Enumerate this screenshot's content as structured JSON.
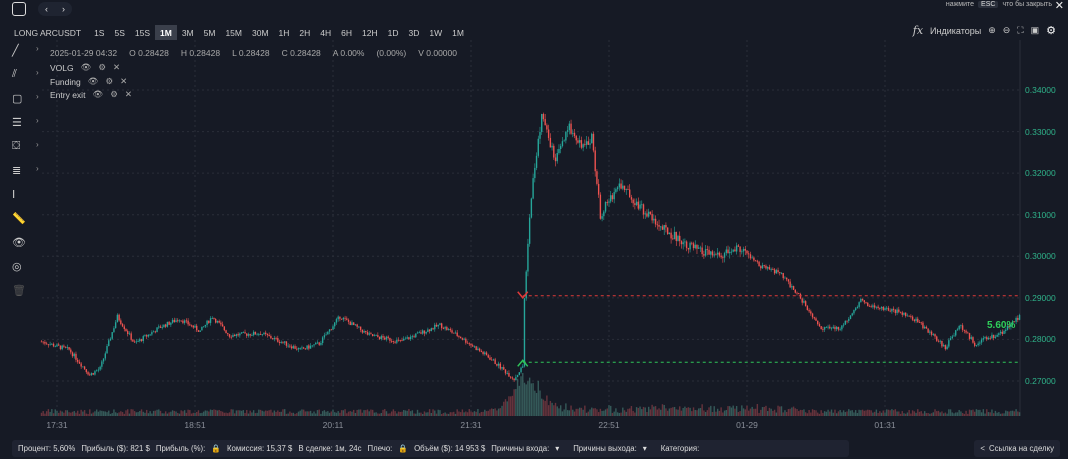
{
  "header": {
    "esc_hint_prefix": "нажмите",
    "esc_key": "ESC",
    "esc_hint_suffix": "что бы закрыть"
  },
  "toolbar": {
    "symbol": "LONG ARCUSDT",
    "timeframes": [
      "1S",
      "5S",
      "15S",
      "1M",
      "3M",
      "5M",
      "15M",
      "30M",
      "1H",
      "2H",
      "4H",
      "6H",
      "12H",
      "1D",
      "3D",
      "1W",
      "1M"
    ],
    "active_timeframe_index": 3,
    "indicators_label": "Индикаторы"
  },
  "ohlc": {
    "date": "2025-01-29 04:32",
    "open": "O 0.28428",
    "high": "H 0.28428",
    "low": "L 0.28428",
    "close": "C 0.28428",
    "change": "A 0.00%",
    "change_pct": "(0.00%)",
    "volume": "V 0.00000"
  },
  "indicators": [
    "VOLG",
    "Funding",
    "Entry exit"
  ],
  "chart_data": {
    "type": "candlestick",
    "x_ticks": [
      "17:31",
      "18:51",
      "20:11",
      "21:31",
      "22:51",
      "01-29",
      "01:31"
    ],
    "y_ticks": [
      "0.34000",
      "0.33000",
      "0.32000",
      "0.31000",
      "0.30000",
      "0.29000",
      "0.28000",
      "0.27000"
    ],
    "ylim": [
      0.27,
      0.34
    ],
    "price_path": [
      [
        "17:22",
        0.2795
      ],
      [
        "17:38",
        0.2775
      ],
      [
        "17:50",
        0.2715
      ],
      [
        "17:56",
        0.273
      ],
      [
        "18:06",
        0.2855
      ],
      [
        "18:16",
        0.279
      ],
      [
        "18:31",
        0.283
      ],
      [
        "18:42",
        0.285
      ],
      [
        "18:54",
        0.282
      ],
      [
        "19:01",
        0.2855
      ],
      [
        "19:11",
        0.281
      ],
      [
        "19:29",
        0.2815
      ],
      [
        "19:52",
        0.2775
      ],
      [
        "20:03",
        0.279
      ],
      [
        "20:15",
        0.2855
      ],
      [
        "20:32",
        0.281
      ],
      [
        "20:50",
        0.2795
      ],
      [
        "21:13",
        0.2835
      ],
      [
        "21:25",
        0.2805
      ],
      [
        "21:42",
        0.2755
      ],
      [
        "21:56",
        0.2705
      ],
      [
        "22:01",
        0.2735
      ],
      [
        "22:02",
        0.29
      ],
      [
        "22:06",
        0.315
      ],
      [
        "22:12",
        0.334
      ],
      [
        "22:20",
        0.323
      ],
      [
        "22:28",
        0.331
      ],
      [
        "22:37",
        0.326
      ],
      [
        "22:41",
        0.329
      ],
      [
        "22:46",
        0.31
      ],
      [
        "22:57",
        0.3175
      ],
      [
        "23:09",
        0.312
      ],
      [
        "23:21",
        0.307
      ],
      [
        "23:32",
        0.304
      ],
      [
        "23:44",
        0.301
      ],
      [
        "23:55",
        0.3
      ],
      [
        "00:07",
        0.302
      ],
      [
        "00:19",
        0.2975
      ],
      [
        "00:30",
        0.296
      ],
      [
        "00:42",
        0.29
      ],
      [
        "00:53",
        0.283
      ],
      [
        "01:05",
        0.2825
      ],
      [
        "01:17",
        0.2895
      ],
      [
        "01:22",
        0.288
      ],
      [
        "01:40",
        0.2865
      ],
      [
        "01:51",
        0.284
      ],
      [
        "02:06",
        0.278
      ],
      [
        "02:14",
        0.2835
      ],
      [
        "02:23",
        0.279
      ],
      [
        "02:38",
        0.2815
      ],
      [
        "02:49",
        0.2855
      ]
    ],
    "entry_price": 0.2745,
    "exit_price": 0.2905,
    "result_label": "5.60%",
    "colors": {
      "up": "#26a69a",
      "down": "#ef5350",
      "entry": "#2fc55a",
      "exit": "#e03a3a",
      "volume": "#5a5f6a"
    }
  },
  "footer": {
    "percent": "Процент: 5,60%",
    "profit_usd": "Прибыль ($): 821 $",
    "profit_pct": "Прибыль (%):",
    "commission": "Комиссия: 15,37 $",
    "in_trade": "В сделке: 1м, 24с",
    "leverage": "Плечо:",
    "volume": "Объём ($): 14 953 $",
    "entry_reasons": "Причины входа:",
    "exit_reasons": "Причины выхода:",
    "category": "Категория:",
    "share_link": "Ссылка на сделку"
  }
}
